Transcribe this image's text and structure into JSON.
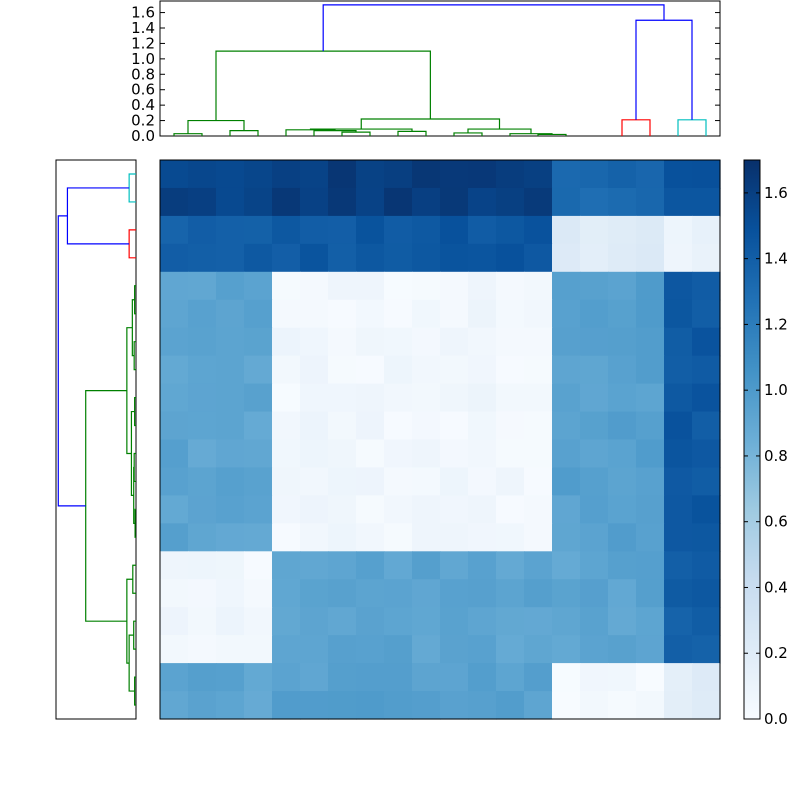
{
  "chart_data": {
    "type": "heatmap",
    "title": "",
    "xlabel": "",
    "ylabel": "",
    "rows": 20,
    "cols": 20,
    "cluster_sizes": [
      4,
      10,
      2,
      2,
      2
    ],
    "top_dendrogram": {
      "ylim": [
        0,
        1.75
      ],
      "yticks": [
        0.0,
        0.2,
        0.4,
        0.6,
        0.8,
        1.0,
        1.2,
        1.4,
        1.6
      ],
      "ytick_labels": [
        "0.0",
        "0.2",
        "0.4",
        "0.6",
        "0.8",
        "1.0",
        "1.2",
        "1.4",
        "1.6"
      ],
      "links": [
        {
          "a": 0.5,
          "b": 1.5,
          "h": 0.03,
          "c": "green"
        },
        {
          "a": 2.5,
          "b": 3.5,
          "h": 0.07,
          "c": "green"
        },
        {
          "a": 1.0,
          "b": 3.0,
          "h": 0.2,
          "c": "green"
        },
        {
          "a": 6.5,
          "b": 7.5,
          "h": 0.05,
          "c": "green"
        },
        {
          "a": 5.5,
          "b": 7.0,
          "h": 0.07,
          "c": "green"
        },
        {
          "a": 4.5,
          "b": 6.25,
          "h": 0.08,
          "c": "green"
        },
        {
          "a": 8.5,
          "b": 9.5,
          "h": 0.06,
          "c": "green"
        },
        {
          "a": 5.375,
          "b": 9.0,
          "h": 0.09,
          "c": "green"
        },
        {
          "a": 10.5,
          "b": 11.5,
          "h": 0.04,
          "c": "green"
        },
        {
          "a": 13.5,
          "b": 14.5,
          "h": 0.02,
          "c": "green"
        },
        {
          "a": 12.5,
          "b": 14.0,
          "h": 0.03,
          "c": "green"
        },
        {
          "a": 11.0,
          "b": 13.25,
          "h": 0.09,
          "c": "green"
        },
        {
          "a": 7.1875,
          "b": 12.125,
          "h": 0.22,
          "c": "green"
        },
        {
          "a": 2.0,
          "b": 9.65625,
          "h": 1.1,
          "c": "green"
        },
        {
          "a": 16.5,
          "b": 17.5,
          "h": 0.21,
          "c": "red"
        },
        {
          "a": 18.5,
          "b": 19.5,
          "h": 0.21,
          "c": "cyan"
        },
        {
          "a": 17.0,
          "b": 19.0,
          "h": 1.5,
          "c": "blue"
        },
        {
          "a": 5.828125,
          "b": 18.0,
          "h": 1.7,
          "c": "blue"
        }
      ]
    },
    "left_dendrogram": {
      "xlim": [
        0,
        1.75
      ],
      "links": [
        {
          "a": 0.5,
          "b": 1.5,
          "h": 0.15,
          "c": "cyan"
        },
        {
          "a": 2.5,
          "b": 3.5,
          "h": 0.15,
          "c": "red"
        },
        {
          "a": 1.0,
          "b": 3.0,
          "h": 1.5,
          "c": "blue"
        },
        {
          "a": 4.5,
          "b": 5.5,
          "h": 0.03,
          "c": "green"
        },
        {
          "a": 6.5,
          "b": 7.5,
          "h": 0.04,
          "c": "green"
        },
        {
          "a": 5.0,
          "b": 7.0,
          "h": 0.08,
          "c": "green"
        },
        {
          "a": 8.5,
          "b": 9.5,
          "h": 0.03,
          "c": "green"
        },
        {
          "a": 10.5,
          "b": 11.5,
          "h": 0.04,
          "c": "green"
        },
        {
          "a": 12.5,
          "b": 13.5,
          "h": 0.02,
          "c": "green"
        },
        {
          "a": 11.0,
          "b": 13.0,
          "h": 0.05,
          "c": "green"
        },
        {
          "a": 9.0,
          "b": 12.0,
          "h": 0.1,
          "c": "green"
        },
        {
          "a": 6.0,
          "b": 10.5,
          "h": 0.2,
          "c": "green"
        },
        {
          "a": 14.5,
          "b": 15.5,
          "h": 0.07,
          "c": "green"
        },
        {
          "a": 16.5,
          "b": 17.5,
          "h": 0.05,
          "c": "green"
        },
        {
          "a": 18.5,
          "b": 19.5,
          "h": 0.03,
          "c": "green"
        },
        {
          "a": 17.0,
          "b": 19.0,
          "h": 0.15,
          "c": "green"
        },
        {
          "a": 15.0,
          "b": 18.0,
          "h": 0.2,
          "c": "green"
        },
        {
          "a": 8.25,
          "b": 16.5,
          "h": 1.1,
          "c": "green"
        },
        {
          "a": 2.0,
          "b": 12.375,
          "h": 1.7,
          "c": "blue"
        }
      ]
    },
    "row_order": [
      4,
      4,
      3,
      3,
      1,
      1,
      1,
      1,
      1,
      1,
      1,
      1,
      1,
      1,
      0,
      0,
      0,
      0,
      2,
      2
    ],
    "col_order": [
      0,
      0,
      0,
      0,
      1,
      1,
      1,
      1,
      1,
      1,
      1,
      1,
      1,
      1,
      2,
      2,
      2,
      2,
      3,
      3
    ],
    "cluster_distance_matrix": [
      [
        0.05,
        0.92,
        0.92,
        1.4,
        1.58
      ],
      [
        0.92,
        0.05,
        0.95,
        1.44,
        1.62
      ],
      [
        0.92,
        0.95,
        0.02,
        0.2,
        1.33
      ],
      [
        1.4,
        1.44,
        0.2,
        0.1,
        1.46
      ],
      [
        1.58,
        1.62,
        1.33,
        1.46,
        0.1
      ]
    ],
    "colorbar": {
      "vmin": 0.0,
      "vmax": 1.7,
      "ticks": [
        0.0,
        0.2,
        0.4,
        0.6,
        0.8,
        1.0,
        1.2,
        1.4,
        1.6
      ],
      "tick_labels": [
        "0.0",
        "0.2",
        "0.4",
        "0.6",
        "0.8",
        "1.0",
        "1.2",
        "1.4",
        "1.6"
      ],
      "colormap": "Blues"
    },
    "link_colors": {
      "green": "#008000",
      "red": "#ff0000",
      "cyan": "#00bfbf",
      "blue": "#0000ff"
    }
  }
}
